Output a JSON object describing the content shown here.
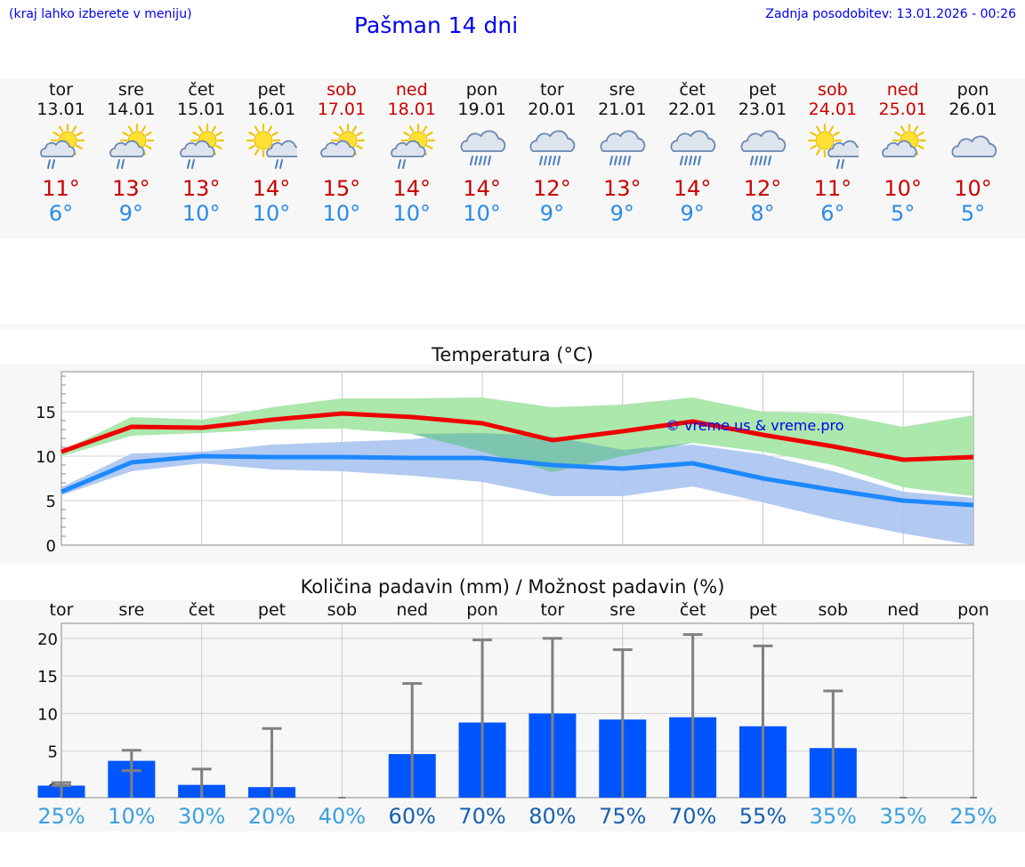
{
  "header": {
    "region_hint": "(kraj lahko izberete v meniju)",
    "title": "Pašman 14 dni",
    "last_update": "Zadnja posodobitev: 13.01.2026 - 00:26"
  },
  "days": [
    {
      "name": "tor",
      "date": "13.01",
      "weekend": false,
      "icon": "partly-sunny-rain-icon",
      "tmax": "11°",
      "tmin": "6°"
    },
    {
      "name": "sre",
      "date": "14.01",
      "weekend": false,
      "icon": "partly-sunny-rain-icon",
      "tmax": "13°",
      "tmin": "9°"
    },
    {
      "name": "čet",
      "date": "15.01",
      "weekend": false,
      "icon": "partly-sunny-rain-icon",
      "tmax": "13°",
      "tmin": "10°"
    },
    {
      "name": "pet",
      "date": "16.01",
      "weekend": false,
      "icon": "sun-cloud-rain-icon",
      "tmax": "14°",
      "tmin": "10°"
    },
    {
      "name": "sob",
      "date": "17.01",
      "weekend": true,
      "icon": "partly-sunny-icon",
      "tmax": "15°",
      "tmin": "10°"
    },
    {
      "name": "ned",
      "date": "18.01",
      "weekend": true,
      "icon": "partly-sunny-rain-icon",
      "tmax": "14°",
      "tmin": "10°"
    },
    {
      "name": "pon",
      "date": "19.01",
      "weekend": false,
      "icon": "rain-cloud-icon",
      "tmax": "14°",
      "tmin": "10°"
    },
    {
      "name": "tor",
      "date": "20.01",
      "weekend": false,
      "icon": "rain-cloud-icon",
      "tmax": "12°",
      "tmin": "9°"
    },
    {
      "name": "sre",
      "date": "21.01",
      "weekend": false,
      "icon": "rain-cloud-icon",
      "tmax": "13°",
      "tmin": "9°"
    },
    {
      "name": "čet",
      "date": "22.01",
      "weekend": false,
      "icon": "rain-cloud-icon",
      "tmax": "14°",
      "tmin": "9°"
    },
    {
      "name": "pet",
      "date": "23.01",
      "weekend": false,
      "icon": "rain-cloud-icon",
      "tmax": "12°",
      "tmin": "8°"
    },
    {
      "name": "sob",
      "date": "24.01",
      "weekend": true,
      "icon": "sun-cloud-rain-icon",
      "tmax": "11°",
      "tmin": "6°"
    },
    {
      "name": "ned",
      "date": "25.01",
      "weekend": true,
      "icon": "partly-sunny-icon",
      "tmax": "10°",
      "tmin": "5°"
    },
    {
      "name": "pon",
      "date": "26.01",
      "weekend": false,
      "icon": "cloudy-icon",
      "tmax": "10°",
      "tmin": "5°"
    }
  ],
  "colors": {
    "max_line": "#ee0000",
    "min_line": "#1e88ff",
    "max_band": "#a8e6a8",
    "min_band": "#aac4f0",
    "overlap_band": "#78c4a8",
    "bar": "#0055ff",
    "error_bar": "#808080",
    "watermark": "#0000ee",
    "pct_dark": "#1560b0",
    "pct_light": "#3aa0e0"
  },
  "chart_data": [
    {
      "type": "line",
      "title": "Temperatura (°C)",
      "watermark": "© vreme.us & vreme.pro",
      "ylim": [
        0,
        19.5
      ],
      "yticks": [
        0,
        5,
        10,
        15
      ],
      "ytick_labels": [
        "0",
        "5",
        "10",
        "15"
      ],
      "grid": true,
      "x": [
        0,
        1,
        2,
        3,
        4,
        5,
        6,
        7,
        8,
        9,
        10,
        11,
        12,
        13
      ],
      "series": [
        {
          "name": "max",
          "values": [
            10.5,
            13.3,
            13.2,
            14.1,
            14.8,
            14.4,
            13.7,
            11.8,
            12.8,
            13.9,
            12.4,
            11.1,
            9.6,
            9.9
          ]
        },
        {
          "name": "min",
          "values": [
            6.0,
            9.3,
            10.0,
            9.9,
            9.9,
            9.8,
            9.8,
            9.0,
            8.6,
            9.2,
            7.5,
            6.2,
            5.0,
            4.5
          ]
        }
      ],
      "bands": [
        {
          "name": "max_range",
          "upper": [
            10.6,
            14.4,
            14.1,
            15.5,
            16.5,
            16.5,
            16.6,
            15.5,
            15.8,
            16.6,
            15.0,
            14.8,
            13.3,
            14.6
          ],
          "lower": [
            10.0,
            12.3,
            12.6,
            13.0,
            13.1,
            12.5,
            10.5,
            8.2,
            10.0,
            11.5,
            10.5,
            9.0,
            6.5,
            5.5
          ]
        },
        {
          "name": "min_range",
          "upper": [
            6.5,
            10.3,
            10.5,
            11.3,
            11.6,
            11.9,
            12.6,
            12.2,
            10.7,
            11.3,
            10.2,
            8.3,
            6.0,
            5.3
          ],
          "lower": [
            5.6,
            8.3,
            9.2,
            8.5,
            8.3,
            7.8,
            7.1,
            5.5,
            5.5,
            6.6,
            4.8,
            2.9,
            1.3,
            0.0
          ]
        }
      ]
    },
    {
      "type": "bar",
      "title": "Količina padavin (mm) / Možnost padavin (%)",
      "categories": [
        "tor",
        "sre",
        "čet",
        "pet",
        "sob",
        "ned",
        "pon",
        "tor",
        "sre",
        "čet",
        "pet",
        "sob",
        "ned",
        "pon"
      ],
      "values": [
        0.4,
        3.7,
        0.5,
        0.2,
        0.0,
        4.6,
        8.8,
        10.0,
        9.2,
        9.5,
        8.3,
        5.4,
        0.0,
        0.0
      ],
      "err_low": [
        0.4,
        2.4,
        0.0,
        0.0,
        0.0,
        0.0,
        0.0,
        0.0,
        0.0,
        0.0,
        0.0,
        0.0,
        0.0,
        0.0
      ],
      "err_high": [
        0.8,
        5.1,
        2.6,
        8.0,
        0.0,
        14.0,
        19.8,
        20.0,
        18.5,
        20.5,
        19.0,
        13.0,
        0.0,
        0.0
      ],
      "probability": [
        "25%",
        "10%",
        "30%",
        "20%",
        "40%",
        "60%",
        "70%",
        "80%",
        "75%",
        "70%",
        "55%",
        "35%",
        "35%",
        "25%"
      ],
      "ylim": [
        -1.2,
        22
      ],
      "yticks": [
        0,
        5,
        10,
        15,
        20
      ],
      "ytick_labels": [
        "0",
        "5",
        "10",
        "15",
        "20"
      ],
      "grid": true
    }
  ]
}
